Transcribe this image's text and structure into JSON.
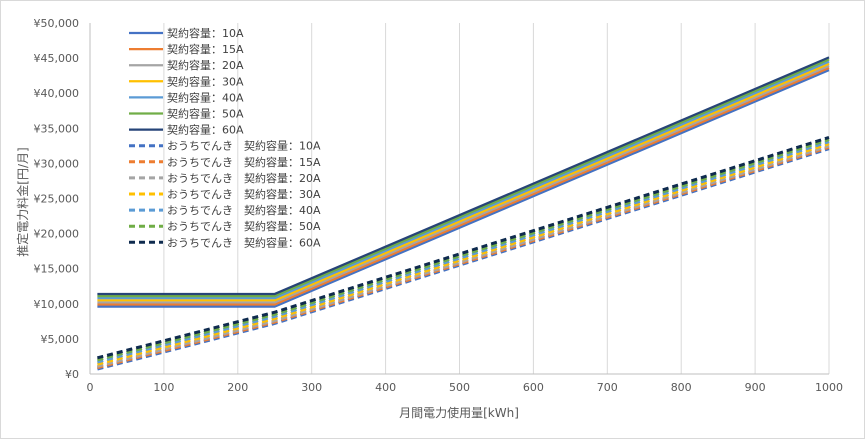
{
  "chart_data": {
    "type": "line",
    "title": "",
    "xlabel": "月間電力使用量[kWh]",
    "ylabel": "推定電力料金[円/月]",
    "xlim": [
      0,
      1000
    ],
    "ylim": [
      0,
      50000
    ],
    "xticks": [
      0,
      100,
      200,
      300,
      400,
      500,
      600,
      700,
      800,
      900,
      1000
    ],
    "yticks": [
      0,
      5000,
      10000,
      15000,
      20000,
      25000,
      30000,
      35000,
      40000,
      45000,
      50000
    ],
    "ytick_labels": [
      "¥0",
      "¥5,000",
      "¥10,000",
      "¥15,000",
      "¥20,000",
      "¥25,000",
      "¥30,000",
      "¥35,000",
      "¥40,000",
      "¥45,000",
      "¥50,000"
    ],
    "grid": "vertical",
    "legend_position": "top-left",
    "x": [
      10,
      250,
      1000
    ],
    "series": [
      {
        "name": "契約容量：10A",
        "color": "#4472c4",
        "dash": false,
        "values": [
          9600,
          9600,
          43300
        ]
      },
      {
        "name": "契約容量：15A",
        "color": "#ed7d31",
        "dash": false,
        "values": [
          9900,
          9900,
          43600
        ]
      },
      {
        "name": "契約容量：20A",
        "color": "#a5a5a5",
        "dash": false,
        "values": [
          10200,
          10200,
          43900
        ]
      },
      {
        "name": "契約容量：30A",
        "color": "#ffc000",
        "dash": false,
        "values": [
          10500,
          10500,
          44200
        ]
      },
      {
        "name": "契約容量：40A",
        "color": "#5b9bd5",
        "dash": false,
        "values": [
          10800,
          10800,
          44500
        ]
      },
      {
        "name": "契約容量：50A",
        "color": "#70ad47",
        "dash": false,
        "values": [
          11100,
          11100,
          44800
        ]
      },
      {
        "name": "契約容量：60A",
        "color": "#264478",
        "dash": false,
        "values": [
          11400,
          11400,
          45100
        ]
      },
      {
        "name": "おうちでんき　契約容量：10A",
        "color": "#4472c4",
        "dash": true,
        "values": [
          700,
          7200,
          32100
        ]
      },
      {
        "name": "おうちでんき　契約容量：15A",
        "color": "#ed7d31",
        "dash": true,
        "values": [
          900,
          7400,
          32300
        ]
      },
      {
        "name": "おうちでんき　契約容量：20A",
        "color": "#a5a5a5",
        "dash": true,
        "values": [
          1100,
          7600,
          32500
        ]
      },
      {
        "name": "おうちでんき　契約容量：30A",
        "color": "#ffc000",
        "dash": true,
        "values": [
          1400,
          7900,
          32800
        ]
      },
      {
        "name": "おうちでんき　契約容量：40A",
        "color": "#5b9bd5",
        "dash": true,
        "values": [
          1700,
          8200,
          33100
        ]
      },
      {
        "name": "おうちでんき　契約容量：50A",
        "color": "#70ad47",
        "dash": true,
        "values": [
          2000,
          8500,
          33400
        ]
      },
      {
        "name": "おうちでんき　契約容量：60A",
        "color": "#0f2b4f",
        "dash": true,
        "values": [
          2300,
          8800,
          33700
        ]
      }
    ]
  }
}
